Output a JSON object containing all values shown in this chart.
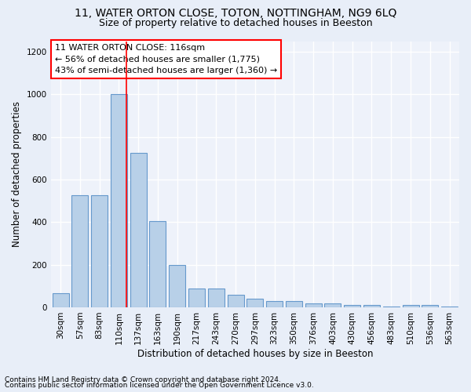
{
  "title1": "11, WATER ORTON CLOSE, TOTON, NOTTINGHAM, NG9 6LQ",
  "title2": "Size of property relative to detached houses in Beeston",
  "xlabel": "Distribution of detached houses by size in Beeston",
  "ylabel": "Number of detached properties",
  "categories": [
    "30sqm",
    "57sqm",
    "83sqm",
    "110sqm",
    "137sqm",
    "163sqm",
    "190sqm",
    "217sqm",
    "243sqm",
    "270sqm",
    "297sqm",
    "323sqm",
    "350sqm",
    "376sqm",
    "403sqm",
    "430sqm",
    "456sqm",
    "483sqm",
    "510sqm",
    "536sqm",
    "563sqm"
  ],
  "values": [
    65,
    525,
    525,
    1000,
    725,
    405,
    198,
    90,
    90,
    58,
    40,
    30,
    30,
    18,
    18,
    10,
    10,
    5,
    10,
    10,
    5
  ],
  "bar_color": "#b8d0e8",
  "bar_edgecolor": "#6699cc",
  "vline_color": "red",
  "vline_pos": 3.4,
  "annotation_text": "11 WATER ORTON CLOSE: 116sqm\n← 56% of detached houses are smaller (1,775)\n43% of semi-detached houses are larger (1,360) →",
  "annotation_box_edgecolor": "red",
  "annotation_box_facecolor": "white",
  "footer1": "Contains HM Land Registry data © Crown copyright and database right 2024.",
  "footer2": "Contains public sector information licensed under the Open Government Licence v3.0.",
  "ylim": [
    0,
    1250
  ],
  "yticks": [
    0,
    200,
    400,
    600,
    800,
    1000,
    1200
  ],
  "bg_color": "#e8eef8",
  "plot_bg_color": "#eef2fa",
  "grid_color": "white",
  "title1_fontsize": 10,
  "title2_fontsize": 9,
  "axis_label_fontsize": 8.5,
  "tick_fontsize": 7.5,
  "footer_fontsize": 6.5,
  "annotation_fontsize": 8
}
